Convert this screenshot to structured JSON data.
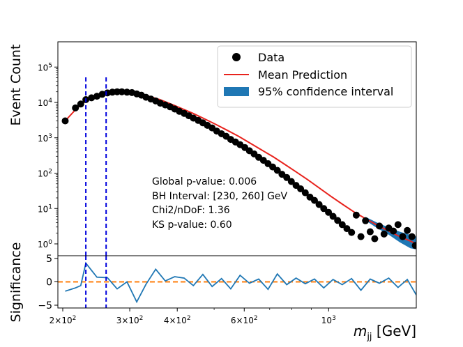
{
  "chart_data": [
    {
      "type": "scatter",
      "title": "",
      "xlabel": "",
      "ylabel": "Event Count",
      "xscale": "log",
      "yscale": "log",
      "xlim": [
        200,
        1700
      ],
      "ylim": [
        0.7,
        500000
      ],
      "y_ticks": [
        {
          "value": 1,
          "label": "10^0"
        },
        {
          "value": 10,
          "label": "10^1"
        },
        {
          "value": 100,
          "label": "10^2"
        },
        {
          "value": 1000,
          "label": "10^3"
        },
        {
          "value": 10000,
          "label": "10^4"
        },
        {
          "value": 100000,
          "label": "10^5"
        }
      ],
      "legend": {
        "placement": "top-right",
        "entries": [
          {
            "label": "Data",
            "marker": "dot",
            "color": "#000000"
          },
          {
            "label": "Mean Prediction",
            "marker": "line",
            "color": "#e8231d"
          },
          {
            "label": "95% confidence interval",
            "marker": "patch",
            "color": "#1f77b4"
          }
        ]
      },
      "annotations": [
        "Global p-value: 0.006",
        "BH Interval: [230, 260] GeV",
        "Chi2/nDoF: 1.36",
        "KS p-value: 0.60"
      ],
      "bh_interval": [
        230,
        260
      ],
      "bh_line_color": "#0000dd",
      "series": [
        {
          "name": "Data",
          "color": "#000000",
          "x": [
            203,
            216,
            223,
            230,
            238,
            246,
            254,
            262,
            270,
            278,
            286,
            295,
            304,
            313,
            322,
            331,
            341,
            351,
            361,
            372,
            383,
            394,
            405,
            417,
            429,
            441,
            454,
            467,
            480,
            494,
            508,
            523,
            538,
            553,
            569,
            585,
            602,
            619,
            637,
            655,
            674,
            693,
            713,
            733,
            754,
            776,
            798,
            821,
            844,
            868,
            893,
            918,
            944,
            971,
            999,
            1027,
            1056,
            1086,
            1117,
            1149,
            1182,
            1216,
            1250,
            1286,
            1322,
            1360,
            1399,
            1439,
            1480,
            1522,
            1566,
            1610,
            1656,
            1690
          ],
          "y": [
            3000,
            7000,
            9000,
            12000,
            13500,
            15000,
            17000,
            18500,
            19500,
            20000,
            20000,
            19500,
            19000,
            17500,
            16000,
            14000,
            12500,
            11000,
            9500,
            8500,
            7500,
            6500,
            5600,
            4900,
            4200,
            3600,
            3100,
            2650,
            2250,
            1900,
            1550,
            1300,
            1100,
            900,
            760,
            640,
            530,
            430,
            350,
            280,
            230,
            185,
            150,
            120,
            93,
            75,
            58,
            45,
            36,
            28,
            21,
            17,
            13,
            10,
            7.8,
            6,
            4.6,
            3.5,
            2.7,
            2.1,
            6.5,
            1.6,
            4.5,
            2.2,
            1.4,
            3.2,
            1.9,
            2.8,
            2.3,
            3.5,
            1.6,
            2.4,
            1.6,
            0.9
          ]
        },
        {
          "name": "Mean Prediction",
          "color": "#e8231d",
          "x": [
            203,
            216,
            223,
            230,
            240,
            250,
            262,
            275,
            290,
            305,
            320,
            340,
            360,
            385,
            410,
            440,
            470,
            505,
            540,
            580,
            620,
            665,
            715,
            765,
            820,
            880,
            945,
            1015,
            1090,
            1170,
            1250,
            1340,
            1440,
            1540,
            1640,
            1700
          ],
          "y": [
            3000,
            6200,
            8500,
            11000,
            13500,
            15500,
            17500,
            19000,
            20000,
            19500,
            17500,
            14500,
            12000,
            9000,
            6800,
            4900,
            3500,
            2400,
            1650,
            1100,
            720,
            460,
            290,
            180,
            110,
            66,
            38,
            22,
            13,
            7.8,
            5.2,
            3.4,
            2.3,
            1.6,
            1.2,
            1.0
          ]
        }
      ],
      "confidence_band": {
        "name": "95% confidence interval",
        "color": "#1f77b4",
        "x": [
          1250,
          1340,
          1440,
          1540,
          1640,
          1700
        ],
        "low": [
          4.6,
          2.8,
          1.8,
          1.1,
          0.75,
          0.7
        ],
        "high": [
          5.8,
          4.0,
          2.9,
          2.2,
          1.8,
          1.6
        ]
      }
    },
    {
      "type": "line",
      "title": "",
      "xlabel": "m_jj [GeV]",
      "ylabel": "Significance",
      "xscale": "log",
      "xlim": [
        200,
        1700
      ],
      "ylim": [
        -5,
        5
      ],
      "y_ticks": [
        {
          "value": -5,
          "label": "−5"
        },
        {
          "value": 0,
          "label": "0"
        },
        {
          "value": 5,
          "label": "5"
        }
      ],
      "x_ticks": [
        {
          "value": 200,
          "label": "2×10^2"
        },
        {
          "value": 300,
          "label": "3×10^2"
        },
        {
          "value": 400,
          "label": "4×10^2"
        },
        {
          "value": 600,
          "label": "6×10^2"
        },
        {
          "value": 1000,
          "label": "10^3"
        }
      ],
      "zero_line_color": "#ff7f0e",
      "series": [
        {
          "name": "",
          "color": "#1f77b4",
          "x": [
            203,
            216,
            223,
            230,
            246,
            262,
            278,
            295,
            313,
            331,
            351,
            372,
            394,
            417,
            441,
            467,
            494,
            523,
            553,
            585,
            619,
            655,
            693,
            733,
            776,
            821,
            868,
            918,
            971,
            1027,
            1086,
            1149,
            1216,
            1286,
            1360,
            1439,
            1522,
            1610,
            1700
          ],
          "y": [
            -2.0,
            -1.3,
            -0.8,
            4.0,
            1.0,
            0.9,
            -1.5,
            0.0,
            -4.3,
            -0.5,
            2.7,
            0.2,
            1.1,
            0.8,
            -0.8,
            1.6,
            -1.0,
            0.7,
            -1.5,
            1.4,
            -0.3,
            0.6,
            -1.6,
            1.7,
            -0.6,
            0.8,
            -0.4,
            0.6,
            -1.3,
            0.5,
            -0.6,
            0.7,
            -1.8,
            0.6,
            -0.3,
            0.8,
            -1.2,
            0.5,
            -2.8
          ]
        }
      ]
    }
  ]
}
